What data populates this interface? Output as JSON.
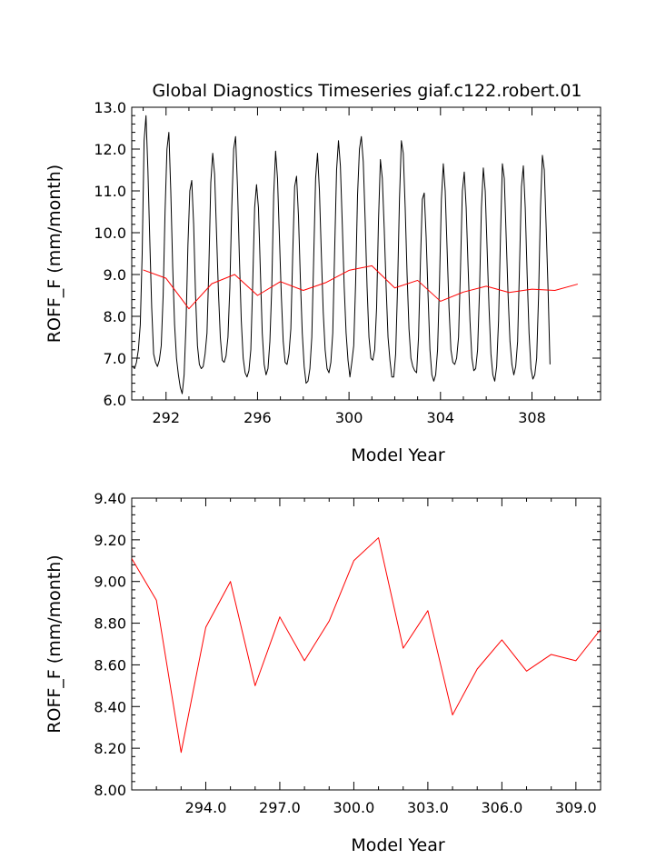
{
  "figure_title": "Global Diagnostics Timeseries giaf.c122.robert.01",
  "colors": {
    "monthly": "#000000",
    "annual": "#ff0000",
    "axes": "#000000"
  },
  "chart_data": [
    {
      "type": "line",
      "title": "Global Diagnostics Timeseries giaf.c122.robert.01",
      "xlabel": "Model Year",
      "ylabel": "ROFF_F (mm/month)",
      "xlim": [
        290.5,
        311.0
      ],
      "ylim": [
        6.0,
        13.0
      ],
      "xticks": [
        292,
        296,
        300,
        304,
        308
      ],
      "xtick_labels": [
        "292",
        "296",
        "300",
        "304",
        "308"
      ],
      "yticks": [
        6.0,
        7.0,
        8.0,
        9.0,
        10.0,
        11.0,
        12.0,
        13.0
      ],
      "ytick_labels": [
        "6.0",
        "7.0",
        "8.0",
        "9.0",
        "10.0",
        "11.0",
        "12.0",
        "13.0"
      ],
      "series": [
        {
          "key": "monthly",
          "x_start": 290.54,
          "x_step": 0.08333,
          "values": [
            6.8,
            6.75,
            6.9,
            7.2,
            7.8,
            9.5,
            12.2,
            12.8,
            11.5,
            9.8,
            8.2,
            7.1,
            6.9,
            6.8,
            6.95,
            7.3,
            8.5,
            10.5,
            12.0,
            12.4,
            11.0,
            9.2,
            7.8,
            7.0,
            6.6,
            6.3,
            6.15,
            6.6,
            7.8,
            9.7,
            11.0,
            11.25,
            10.2,
            8.5,
            7.3,
            6.85,
            6.75,
            6.8,
            7.1,
            7.6,
            9.2,
            11.2,
            11.9,
            11.4,
            10.0,
            8.6,
            7.5,
            6.95,
            6.9,
            7.05,
            7.5,
            8.7,
            10.6,
            12.0,
            12.3,
            11.1,
            9.4,
            7.9,
            7.0,
            6.65,
            6.55,
            6.7,
            7.2,
            8.8,
            10.6,
            11.15,
            10.6,
            9.1,
            7.6,
            6.85,
            6.6,
            6.75,
            7.4,
            8.7,
            10.9,
            11.95,
            11.3,
            9.9,
            8.5,
            7.4,
            6.9,
            6.85,
            7.1,
            7.7,
            9.5,
            11.1,
            11.35,
            10.4,
            8.9,
            7.6,
            6.8,
            6.4,
            6.45,
            6.75,
            7.5,
            9.4,
            11.3,
            11.9,
            11.0,
            9.5,
            8.1,
            7.2,
            6.75,
            6.65,
            6.9,
            7.6,
            9.6,
            11.5,
            12.2,
            11.6,
            10.2,
            8.7,
            7.6,
            6.95,
            6.55,
            6.9,
            7.3,
            8.8,
            10.9,
            12.0,
            12.3,
            11.7,
            10.3,
            8.7,
            7.5,
            7.0,
            6.95,
            7.2,
            8.2,
            10.3,
            11.75,
            11.3,
            10.1,
            8.7,
            7.5,
            6.95,
            6.55,
            6.55,
            7.1,
            8.7,
            10.8,
            12.2,
            11.9,
            10.6,
            9.0,
            7.7,
            7.0,
            6.8,
            6.7,
            6.65,
            7.5,
            9.3,
            10.8,
            10.95,
            9.9,
            8.5,
            7.2,
            6.6,
            6.45,
            6.6,
            7.2,
            8.8,
            10.8,
            11.65,
            11.0,
            9.6,
            8.2,
            7.2,
            6.9,
            6.85,
            7.0,
            7.5,
            9.1,
            11.0,
            11.45,
            10.6,
            9.2,
            7.9,
            7.0,
            6.7,
            6.75,
            7.2,
            8.6,
            10.6,
            11.55,
            11.0,
            9.6,
            8.2,
            7.1,
            6.6,
            6.45,
            6.8,
            7.9,
            9.9,
            11.65,
            11.3,
            9.9,
            8.5,
            7.4,
            6.85,
            6.6,
            6.8,
            7.4,
            9.2,
            11.1,
            11.6,
            10.6,
            9.0,
            7.6,
            6.75,
            6.5,
            6.6,
            7.0,
            8.5,
            10.6,
            11.85,
            11.5,
            10.1,
            8.6,
            6.85
          ]
        },
        {
          "key": "annual",
          "x": [
            291.0,
            292.0,
            293.0,
            294.0,
            295.0,
            296.0,
            297.0,
            298.0,
            299.0,
            300.0,
            301.0,
            302.0,
            303.0,
            304.0,
            305.0,
            306.0,
            307.0,
            308.0,
            309.0,
            310.0
          ],
          "values": [
            9.11,
            8.91,
            8.18,
            8.78,
            9.0,
            8.5,
            8.83,
            8.62,
            8.81,
            9.1,
            9.21,
            8.68,
            8.86,
            8.36,
            8.58,
            8.72,
            8.57,
            8.65,
            8.62,
            8.77
          ]
        }
      ]
    },
    {
      "type": "line",
      "title": "",
      "xlabel": "Model Year",
      "ylabel": "ROFF_F (mm/month)",
      "xlim": [
        291.0,
        310.0
      ],
      "ylim": [
        8.0,
        9.4
      ],
      "xticks": [
        294,
        297,
        300,
        303,
        306,
        309
      ],
      "xtick_labels": [
        "294.0",
        "297.0",
        "300.0",
        "303.0",
        "306.0",
        "309.0"
      ],
      "yticks": [
        8.0,
        8.2,
        8.4,
        8.6,
        8.8,
        9.0,
        9.2,
        9.4
      ],
      "ytick_labels": [
        "8.00",
        "8.20",
        "8.40",
        "8.60",
        "8.80",
        "9.00",
        "9.20",
        "9.40"
      ],
      "series": [
        {
          "key": "annual",
          "x": [
            291.0,
            292.0,
            293.0,
            294.0,
            295.0,
            296.0,
            297.0,
            298.0,
            299.0,
            300.0,
            301.0,
            302.0,
            303.0,
            304.0,
            305.0,
            306.0,
            307.0,
            308.0,
            309.0,
            310.0
          ],
          "values": [
            9.11,
            8.91,
            8.18,
            8.78,
            9.0,
            8.5,
            8.83,
            8.62,
            8.81,
            9.1,
            9.21,
            8.68,
            8.86,
            8.36,
            8.58,
            8.72,
            8.57,
            8.65,
            8.62,
            8.77
          ]
        }
      ]
    }
  ]
}
